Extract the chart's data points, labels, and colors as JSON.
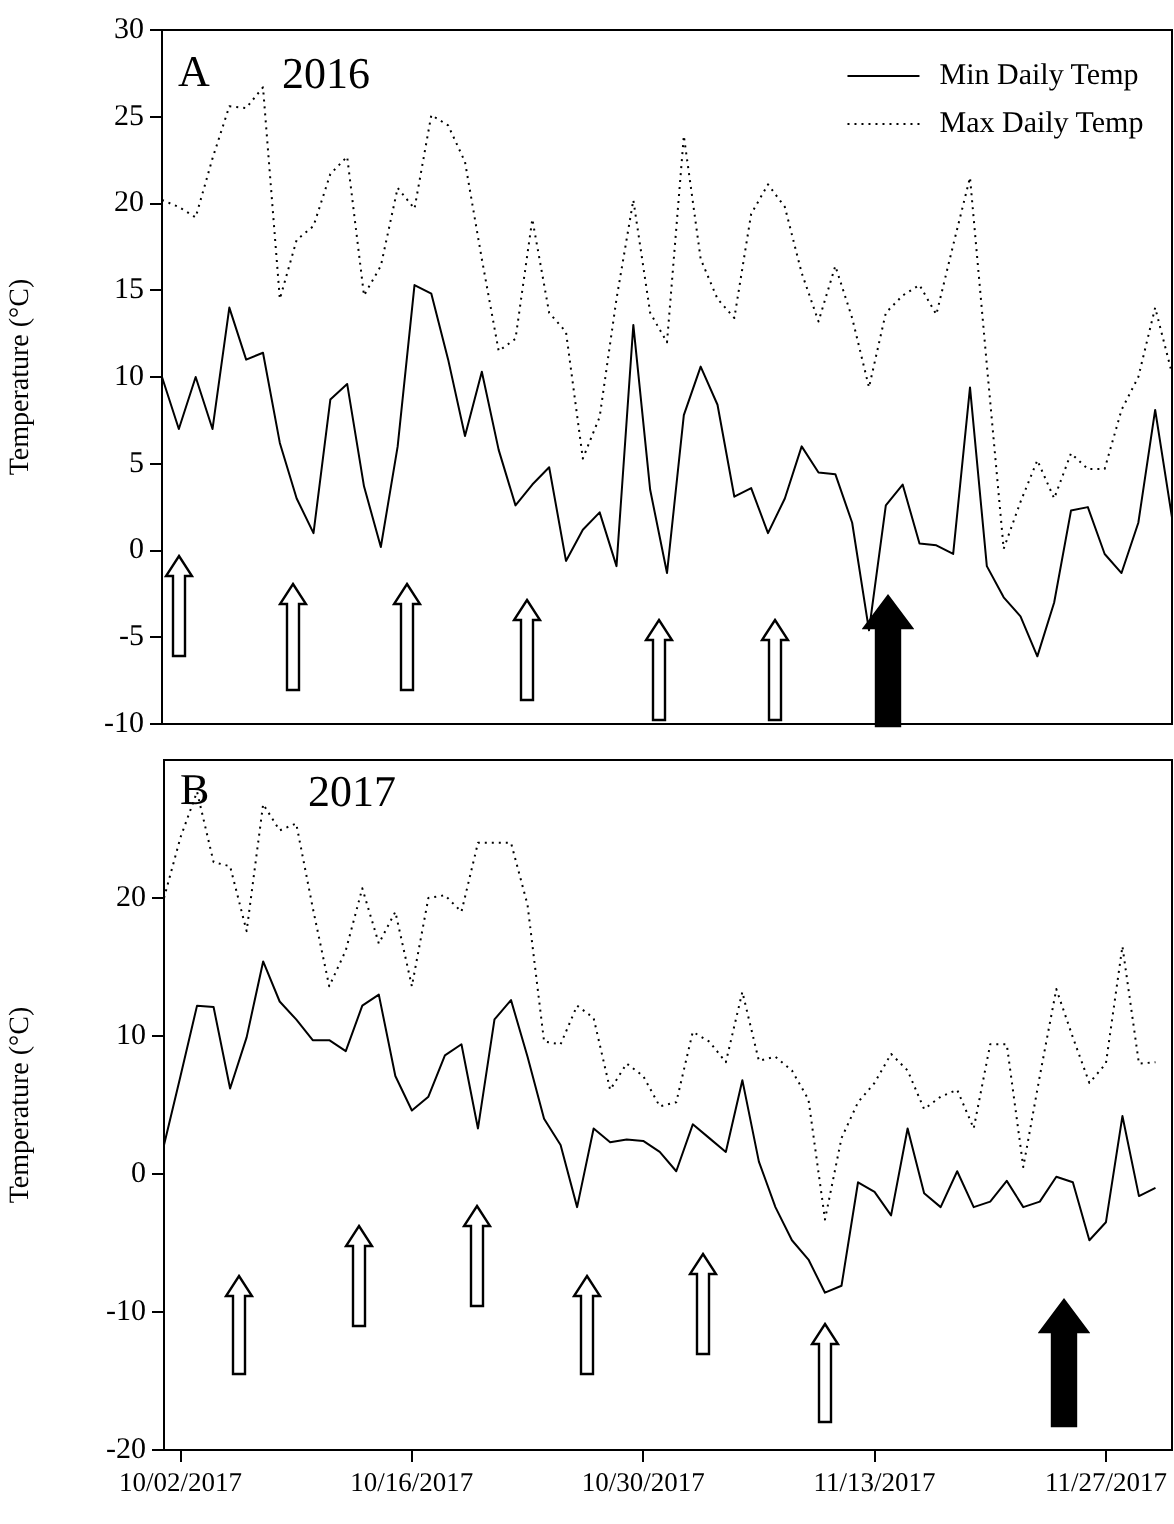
{
  "chart_data": [
    {
      "type": "line",
      "title": "2016",
      "annotations": [
        "A"
      ],
      "ylabel": "Temperature (°C)",
      "legend": "top right",
      "tick_labels": "y",
      "categories": [
        null,
        null,
        null,
        null,
        null,
        null,
        null,
        null,
        null,
        null,
        null,
        null,
        null,
        null,
        null,
        null,
        null,
        null,
        null,
        null,
        null,
        null,
        null,
        null,
        null,
        null,
        null,
        null,
        null,
        null,
        null,
        null,
        null,
        null,
        null,
        null,
        null,
        null,
        null,
        null,
        null,
        null,
        null,
        null,
        null,
        null,
        null,
        null,
        null,
        null,
        null,
        null,
        null,
        null,
        null,
        null,
        null,
        null,
        null,
        null,
        null
      ],
      "ylim": [
        -10,
        30
      ],
      "yticks": [
        -10,
        -5,
        0,
        5,
        10,
        15,
        20,
        25,
        30
      ],
      "series": [
        {
          "name": "Min Daily Temp",
          "color": "#000000",
          "line_style": "solid",
          "values": [
            10,
            7,
            10,
            7,
            14,
            11,
            11.4,
            6.2,
            3,
            1,
            8.7,
            9.6,
            3.7,
            0.2,
            6,
            15.3,
            14.8,
            11,
            6.6,
            10.3,
            5.8,
            2.6,
            3.8,
            4.8,
            -0.6,
            1.2,
            2.2,
            -0.9,
            13,
            3.5,
            -1.3,
            7.8,
            10.6,
            8.4,
            3.1,
            3.6,
            1,
            3,
            6,
            4.5,
            4.4,
            1.6,
            -4.6,
            2.6,
            3.8,
            0.4,
            0.3,
            -0.2,
            9.4,
            -0.9,
            -2.7,
            -3.8,
            -6.1,
            -3,
            2.3,
            2.5,
            -0.2,
            -1.3,
            1.6,
            8.1,
            1.9
          ]
        },
        {
          "name": "Max Daily Temp",
          "color": "#000000",
          "line_style": "dotted",
          "values": [
            20.2,
            19.8,
            19.2,
            22.6,
            25.6,
            25.5,
            26.7,
            14.5,
            17.9,
            18.7,
            21.7,
            22.7,
            14.7,
            16.4,
            20.9,
            19.7,
            25.1,
            24.5,
            22.4,
            16.8,
            11.5,
            12.2,
            19.1,
            13.7,
            12.6,
            5.3,
            7.7,
            14.5,
            20.2,
            13.7,
            12,
            23.9,
            16.8,
            14.5,
            13.4,
            19.4,
            21.1,
            19.8,
            16,
            13.2,
            16.4,
            13.4,
            9.4,
            13.7,
            14.7,
            15.3,
            13.6,
            17.6,
            21.5,
            10.7,
            0.1,
            2.8,
            5.2,
            3,
            5.6,
            4.7,
            4.7,
            8.1,
            10,
            14,
            10.2
          ]
        }
      ]
    },
    {
      "type": "line",
      "title": "2017",
      "annotations": [
        "B"
      ],
      "ylabel": "Temperature (°C)",
      "x": [
        "2017-10-01",
        "2017-10-02",
        "2017-10-03",
        "2017-10-04",
        "2017-10-05",
        "2017-10-06",
        "2017-10-07",
        "2017-10-08",
        "2017-10-09",
        "2017-10-10",
        "2017-10-11",
        "2017-10-12",
        "2017-10-13",
        "2017-10-14",
        "2017-10-15",
        "2017-10-16",
        "2017-10-17",
        "2017-10-18",
        "2017-10-19",
        "2017-10-20",
        "2017-10-21",
        "2017-10-22",
        "2017-10-23",
        "2017-10-24",
        "2017-10-25",
        "2017-10-26",
        "2017-10-27",
        "2017-10-28",
        "2017-10-29",
        "2017-10-30",
        "2017-10-31",
        "2017-11-01",
        "2017-11-02",
        "2017-11-03",
        "2017-11-04",
        "2017-11-05",
        "2017-11-06",
        "2017-11-07",
        "2017-11-08",
        "2017-11-09",
        "2017-11-10",
        "2017-11-11",
        "2017-11-12",
        "2017-11-13",
        "2017-11-14",
        "2017-11-15",
        "2017-11-16",
        "2017-11-17",
        "2017-11-18",
        "2017-11-19",
        "2017-11-20",
        "2017-11-21",
        "2017-11-22",
        "2017-11-23",
        "2017-11-24",
        "2017-11-25",
        "2017-11-26",
        "2017-11-27",
        "2017-11-28",
        "2017-11-29",
        "2017-11-30"
      ],
      "xlim": [
        "2017-10-01",
        "2017-12-01"
      ],
      "xticks": [
        {
          "value": "2017-10-02",
          "label": "10/02/2017"
        },
        {
          "value": "2017-10-16",
          "label": "10/16/2017"
        },
        {
          "value": "2017-10-30",
          "label": "10/30/2017"
        },
        {
          "value": "2017-11-13",
          "label": "11/13/2017"
        },
        {
          "value": "2017-11-27",
          "label": "11/27/2017"
        }
      ],
      "ylim": [
        -20,
        30
      ],
      "yticks": [
        -20,
        -10,
        0,
        10,
        20
      ],
      "series": [
        {
          "color": "#000000",
          "line_style": "solid",
          "values": [
            2.1,
            7.1,
            12.2,
            12.1,
            6.2,
            9.9,
            15.4,
            12.5,
            11.2,
            9.7,
            9.7,
            8.9,
            12.2,
            13,
            7.1,
            4.6,
            5.6,
            8.6,
            9.4,
            3.3,
            11.2,
            12.6,
            8.5,
            4,
            2.1,
            -2.4,
            3.3,
            2.3,
            2.5,
            2.4,
            1.6,
            0.2,
            3.6,
            2.6,
            1.6,
            6.8,
            0.9,
            -2.4,
            -4.8,
            -6.2,
            -8.6,
            -8.1,
            -0.6,
            -1.3,
            -3,
            3.3,
            -1.4,
            -2.4,
            0.2,
            -2.4,
            -2,
            -0.5,
            -2.4,
            -2,
            -0.2,
            -0.6,
            -4.8,
            -3.5,
            4.2,
            -1.6,
            -1
          ]
        },
        {
          "color": "#000000",
          "line_style": "dotted",
          "values": [
            20,
            24.4,
            27.7,
            22.6,
            22.3,
            17.6,
            26.8,
            24.9,
            25.4,
            19.3,
            13.6,
            16.2,
            20.7,
            16.7,
            19,
            13.6,
            20,
            20.2,
            19,
            24,
            24,
            24,
            19.5,
            9.6,
            9.4,
            12.2,
            11.3,
            6.1,
            8,
            7.1,
            4.9,
            5.2,
            10.3,
            9.6,
            8.1,
            13.2,
            8.2,
            8.5,
            7.5,
            5.4,
            -3.3,
            2.6,
            5.2,
            6.6,
            8.7,
            7.5,
            4.7,
            5.6,
            6.1,
            3.3,
            9.4,
            9.4,
            0.5,
            7.1,
            13.4,
            9.9,
            6.6,
            8,
            16.5,
            8,
            8.1
          ]
        }
      ]
    }
  ]
}
